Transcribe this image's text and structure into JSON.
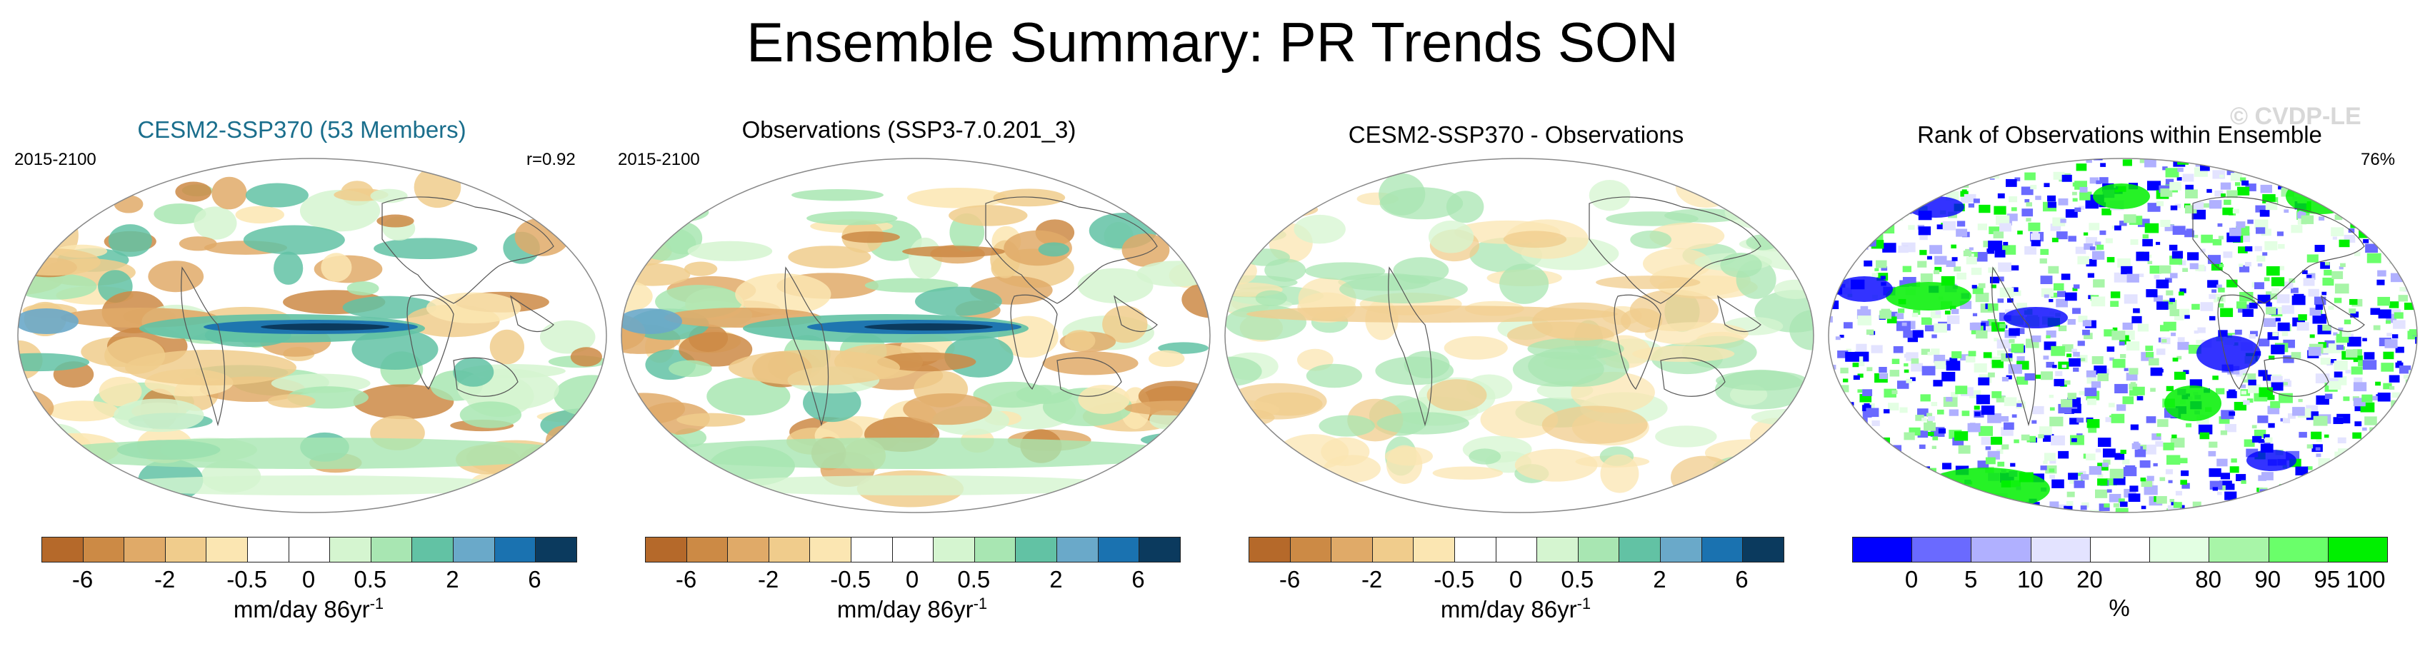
{
  "title": "Ensemble Summary: PR Trends SON",
  "watermark": "© CVDP-LE",
  "panels": [
    {
      "title": "CESM2-SSP370 (53 Members)",
      "title_color": "#1a6e8c",
      "left_label": "2015-2100",
      "right_label": "r=0.92",
      "palette": "diverging",
      "field": "model"
    },
    {
      "title": "Observations (SSP3-7.0.201_3)",
      "title_color": "#000000",
      "left_label": "2015-2100",
      "right_label": "",
      "palette": "diverging",
      "field": "obs"
    },
    {
      "title": "CESM2-SSP370 - Observations",
      "title_color": "#000000",
      "left_label": "",
      "right_label": "",
      "palette": "diverging",
      "field": "diff"
    },
    {
      "title": "Rank of Observations within Ensemble",
      "title_color": "#000000",
      "left_label": "",
      "right_label": "76%",
      "palette": "rank",
      "field": "rank"
    }
  ],
  "colorbars": {
    "diverging": {
      "colors": [
        "#b5692a",
        "#cc8a45",
        "#e0aa68",
        "#f0cc8c",
        "#fbe6b2",
        "#ffffff",
        "#ffffff",
        "#d5f5d0",
        "#a8e6b2",
        "#62c2a4",
        "#6aa9c9",
        "#1a72b0",
        "#0b3a5e"
      ],
      "ticks": [
        "-6",
        "-2",
        "-0.5",
        "0",
        "0.5",
        "2",
        "6"
      ],
      "units": "mm/day 86yr",
      "units_exp": "-1"
    },
    "rank": {
      "colors": [
        "#0000ff",
        "#6a6aff",
        "#b0b0ff",
        "#e3e3ff",
        "#ffffff",
        "#e3ffe3",
        "#a8f5a8",
        "#6aff6a",
        "#00f000"
      ],
      "ticks": [
        "0",
        "5",
        "10",
        "20",
        "80",
        "90",
        "95",
        "100"
      ],
      "units": "%",
      "units_exp": ""
    }
  },
  "chart_data": [
    {
      "type": "heatmap",
      "title": "CESM2-SSP370 (53 Members)",
      "period": "2015-2100",
      "pattern_correlation": 0.92,
      "units": "mm/day 86yr-1",
      "levels": [
        -6,
        -4,
        -2,
        -1,
        -0.5,
        -0.25,
        0,
        0.25,
        0.5,
        1,
        2,
        4,
        6
      ]
    },
    {
      "type": "heatmap",
      "title": "Observations (SSP3-7.0.201_3)",
      "period": "2015-2100",
      "units": "mm/day 86yr-1",
      "levels": [
        -6,
        -4,
        -2,
        -1,
        -0.5,
        -0.25,
        0,
        0.25,
        0.5,
        1,
        2,
        4,
        6
      ]
    },
    {
      "type": "heatmap",
      "title": "CESM2-SSP370 - Observations",
      "units": "mm/day 86yr-1",
      "levels": [
        -6,
        -4,
        -2,
        -1,
        -0.5,
        -0.25,
        0,
        0.25,
        0.5,
        1,
        2,
        4,
        6
      ]
    },
    {
      "type": "heatmap",
      "title": "Rank of Observations within Ensemble",
      "percent_within_10_90": 76,
      "units": "%",
      "levels": [
        0,
        5,
        10,
        20,
        80,
        90,
        95,
        100
      ]
    }
  ]
}
